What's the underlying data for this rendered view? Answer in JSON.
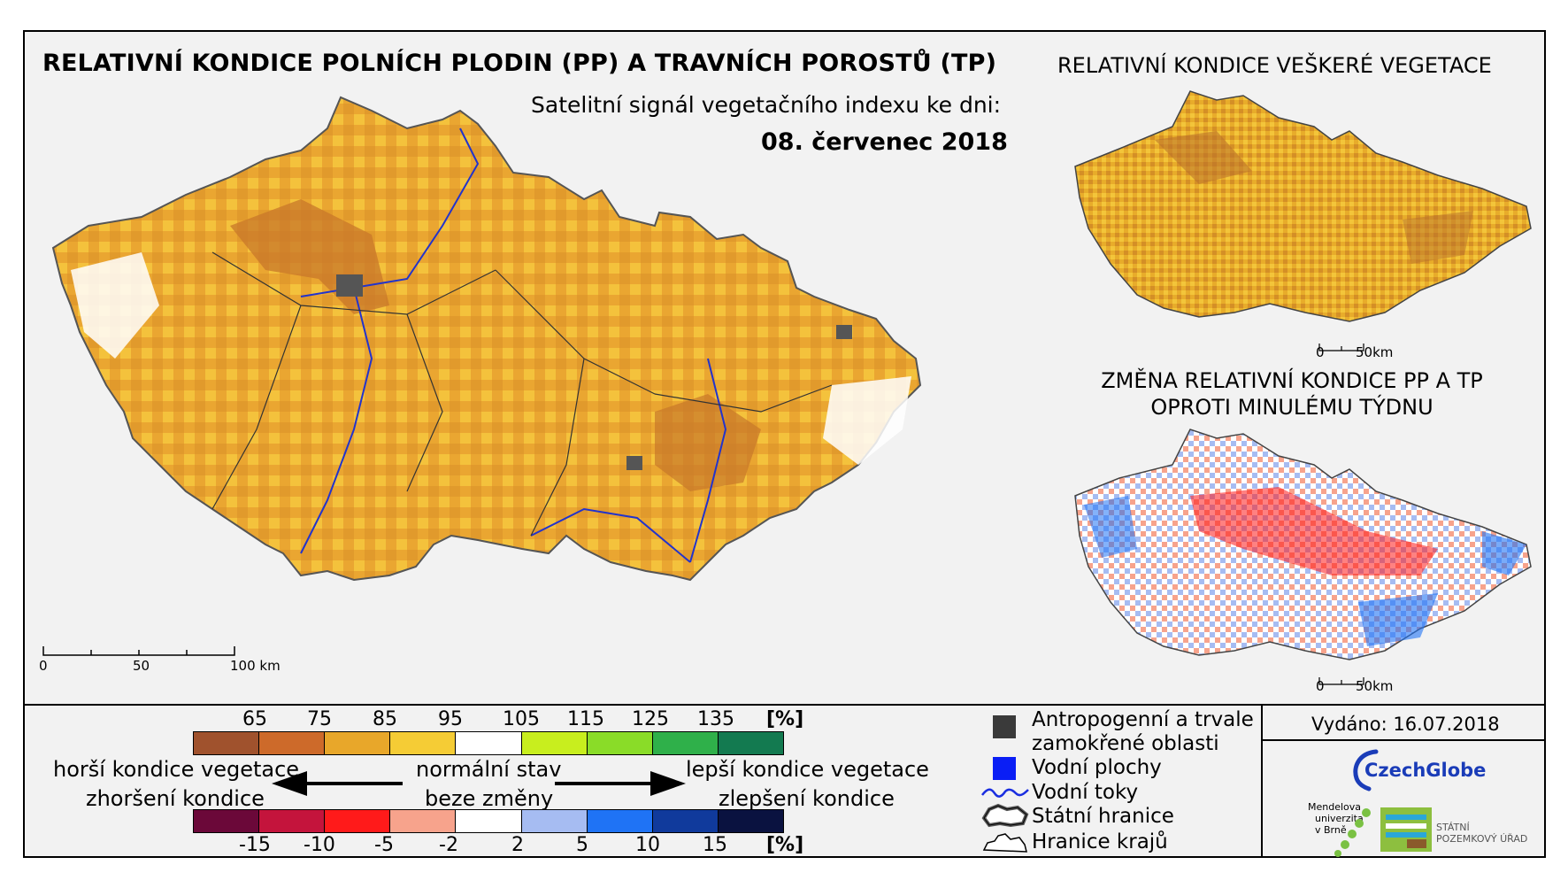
{
  "title": "RELATIVNÍ KONDICE POLNÍCH PLODIN (PP) A TRAVNÍCH POROSTŮ (TP)",
  "subtitle": "Satelitní signál vegetačního indexu ke dni:",
  "date": "08. červenec 2018",
  "side_top_title": "RELATIVNÍ KONDICE VEŠKERÉ VEGETACE",
  "side_bottom_title_line1": "ZMĚNA RELATIVNÍ KONDICE PP A TP",
  "side_bottom_title_line2": "OPROTI MINULÉMU TÝDNU",
  "main_scale": {
    "t0": "0",
    "t1": "50",
    "t2": "100 km"
  },
  "small_scale": {
    "t0": "0",
    "t1": "50km"
  },
  "legend": {
    "condition_ticks": [
      "65",
      "75",
      "85",
      "95",
      "105",
      "115",
      "125",
      "135"
    ],
    "condition_unit": "[%]",
    "condition_colors": [
      "#a0522d",
      "#cd6a2a",
      "#e8a72a",
      "#f5cc35",
      "#ffffff",
      "#c8ee1e",
      "#8adc28",
      "#2fb04a",
      "#137a50"
    ],
    "change_ticks": [
      "-15",
      "-10",
      "-5",
      "-2",
      "2",
      "5",
      "10",
      "15"
    ],
    "change_unit": "[%]",
    "change_colors": [
      "#6b0839",
      "#c4143c",
      "#ff1a1a",
      "#f7a38c",
      "#ffffff",
      "#a6bcf2",
      "#1f73f5",
      "#103a9c",
      "#0a1240"
    ],
    "worse_line1": "horší kondice vegetace",
    "worse_line2": "zhoršení kondice",
    "normal_line1": "normální stav",
    "normal_line2": "beze změny",
    "better_line1": "lepší kondice vegetace",
    "better_line2": "zlepšení kondice"
  },
  "symbols": {
    "urban_line1": "Antropogenní a trvale",
    "urban_line2": "zamokřené oblasti",
    "water": "Vodní plochy",
    "rivers": "Vodní toky",
    "state_border": "Státní hranice",
    "region_border": "Hranice krajů"
  },
  "issued": "Vydáno: 16.07.2018",
  "logos": {
    "czechglobe": "CzechGlobe",
    "mendel_line1": "Mendelova",
    "mendel_line2": "univerzita",
    "mendel_line3": "v Brně",
    "spu_line1": "STÁTNÍ",
    "spu_line2": "POZEMKOVÝ ÚŘAD"
  }
}
